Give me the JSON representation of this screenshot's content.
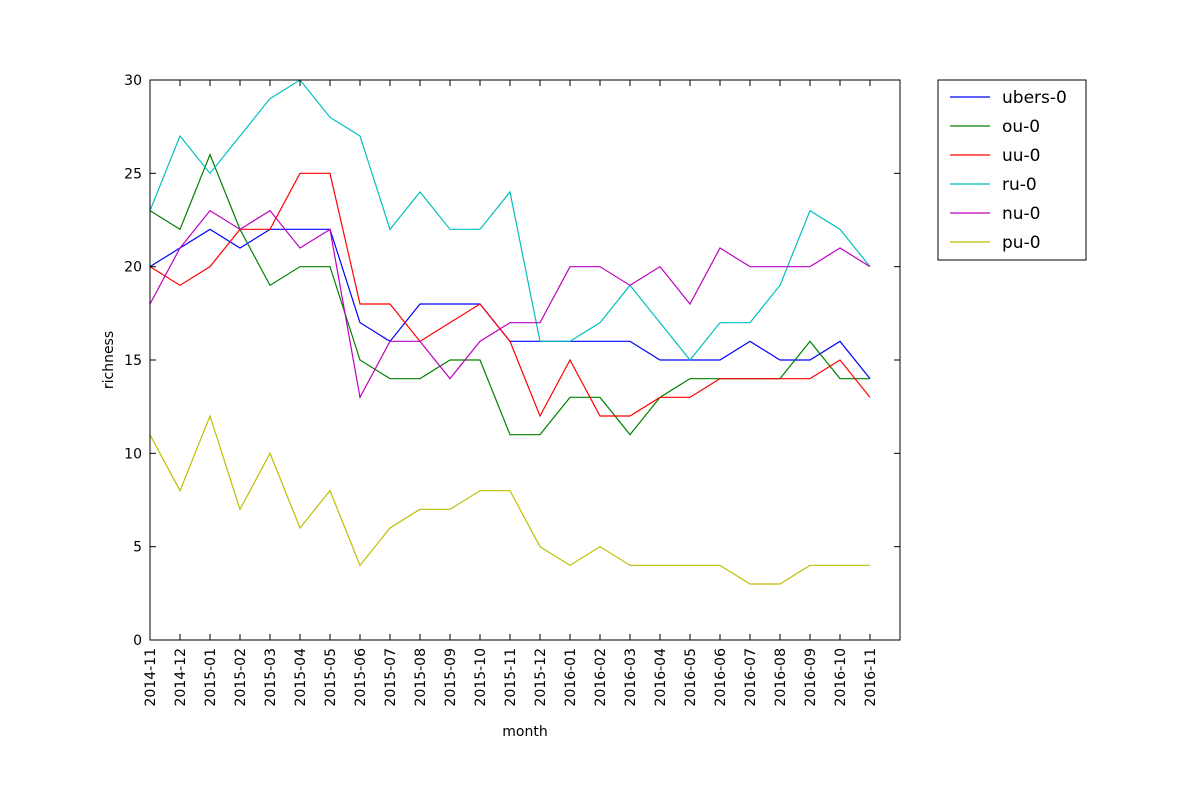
{
  "chart_data": {
    "type": "line",
    "xlabel": "month",
    "ylabel": "richness",
    "ylim": [
      0,
      30
    ],
    "yticks": [
      0,
      5,
      10,
      15,
      20,
      25,
      30
    ],
    "legend_position": "outside-top-right",
    "grid": false,
    "categories": [
      "2014-11",
      "2014-12",
      "2015-01",
      "2015-02",
      "2015-03",
      "2015-04",
      "2015-05",
      "2015-06",
      "2015-07",
      "2015-08",
      "2015-09",
      "2015-10",
      "2015-11",
      "2015-12",
      "2016-01",
      "2016-02",
      "2016-03",
      "2016-04",
      "2016-05",
      "2016-06",
      "2016-07",
      "2016-08",
      "2016-09",
      "2016-10",
      "2016-11"
    ],
    "series": [
      {
        "name": "ubers-0",
        "color": "#0000ff",
        "values": [
          20,
          21,
          22,
          21,
          22,
          22,
          22,
          17,
          16,
          18,
          18,
          18,
          16,
          16,
          16,
          16,
          16,
          15,
          15,
          15,
          16,
          15,
          15,
          16,
          14
        ]
      },
      {
        "name": "ou-0",
        "color": "#008000",
        "values": [
          23,
          22,
          26,
          22,
          19,
          20,
          20,
          15,
          14,
          14,
          15,
          15,
          11,
          11,
          13,
          13,
          11,
          13,
          14,
          14,
          14,
          14,
          16,
          14,
          14
        ]
      },
      {
        "name": "uu-0",
        "color": "#ff0000",
        "values": [
          20,
          19,
          20,
          22,
          22,
          25,
          25,
          18,
          18,
          16,
          17,
          18,
          16,
          12,
          15,
          12,
          12,
          13,
          13,
          14,
          14,
          14,
          14,
          15,
          13
        ]
      },
      {
        "name": "ru-0",
        "color": "#00bfbf",
        "values": [
          23,
          27,
          25,
          27,
          29,
          30,
          28,
          27,
          22,
          24,
          22,
          22,
          24,
          16,
          16,
          17,
          19,
          17,
          15,
          17,
          17,
          19,
          23,
          22,
          20
        ]
      },
      {
        "name": "nu-0",
        "color": "#bf00bf",
        "values": [
          18,
          21,
          23,
          22,
          23,
          21,
          22,
          13,
          16,
          16,
          14,
          16,
          17,
          17,
          20,
          20,
          19,
          20,
          18,
          21,
          20,
          20,
          20,
          21,
          20
        ]
      },
      {
        "name": "pu-0",
        "color": "#bfbf00",
        "values": [
          11,
          8,
          12,
          7,
          10,
          6,
          8,
          4,
          6,
          7,
          7,
          8,
          8,
          5,
          4,
          5,
          4,
          4,
          4,
          4,
          3,
          3,
          4,
          4,
          4
        ]
      }
    ]
  }
}
